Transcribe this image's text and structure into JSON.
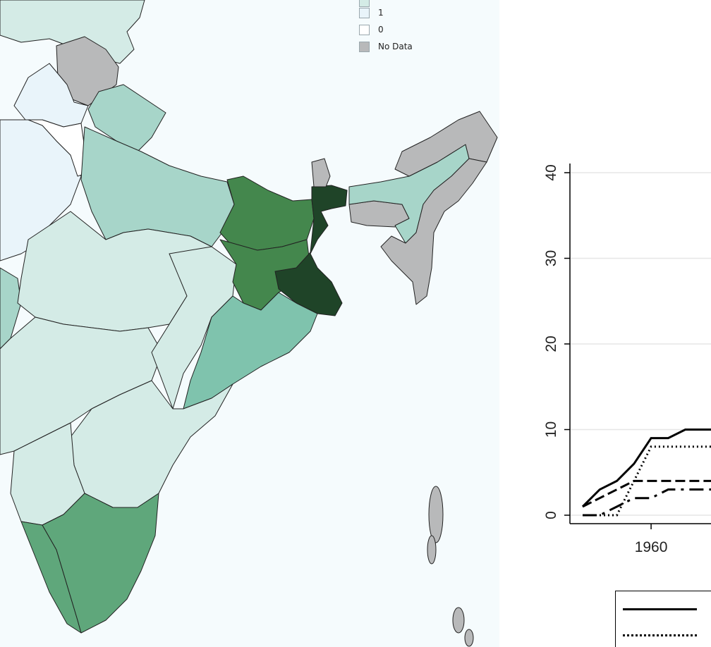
{
  "map": {
    "colors": {
      "background": "#f5fbfd",
      "no_data": "#b8b9ba",
      "level_0": "#ffffff",
      "level_1": "#e9f4fa",
      "level_2": "#d4ebe6",
      "level_3": "#a7d5c9",
      "level_4": "#7fc3ad",
      "level_5": "#5fa77b",
      "level_6": "#44874d",
      "level_7": "#1f4428",
      "border": "#222222"
    },
    "legend": {
      "items": [
        {
          "label": "",
          "color": "#d4ebe6"
        },
        {
          "label": "1",
          "color": "#e9f4fa"
        },
        {
          "label": "0",
          "color": "#ffffff"
        },
        {
          "label": "No Data",
          "color": "#b8b9ba"
        }
      ]
    }
  },
  "chart_data": {
    "type": "line",
    "title": "",
    "xlabel": "",
    "ylabel": "",
    "x_ticks": [
      "1960"
    ],
    "y_ticks": [
      "0",
      "10",
      "20",
      "30",
      "40"
    ],
    "ylim": [
      0,
      40
    ],
    "xlim": [
      1952,
      1967
    ],
    "grid": true,
    "legend_placement": "bottom",
    "series": [
      {
        "style": "solid",
        "x": [
          1952,
          1954,
          1956,
          1958,
          1960,
          1962,
          1964,
          1966,
          1967
        ],
        "y": [
          1,
          3,
          4,
          6,
          9,
          9,
          10,
          10,
          10
        ]
      },
      {
        "style": "dotted",
        "x": [
          1952,
          1954,
          1956,
          1958,
          1960,
          1962,
          1964,
          1966,
          1967
        ],
        "y": [
          0,
          0,
          0,
          4,
          8,
          8,
          8,
          8,
          8
        ]
      },
      {
        "style": "dashed",
        "x": [
          1952,
          1954,
          1956,
          1958,
          1960,
          1962,
          1964,
          1966,
          1967
        ],
        "y": [
          1,
          2,
          3,
          4,
          4,
          4,
          4,
          4,
          4
        ]
      },
      {
        "style": "longdash",
        "x": [
          1952,
          1954,
          1956,
          1958,
          1960,
          1962,
          1964,
          1966,
          1967
        ],
        "y": [
          0,
          0,
          1,
          2,
          2,
          3,
          3,
          3,
          3
        ]
      }
    ],
    "legend_entries": [
      "",
      ""
    ]
  }
}
